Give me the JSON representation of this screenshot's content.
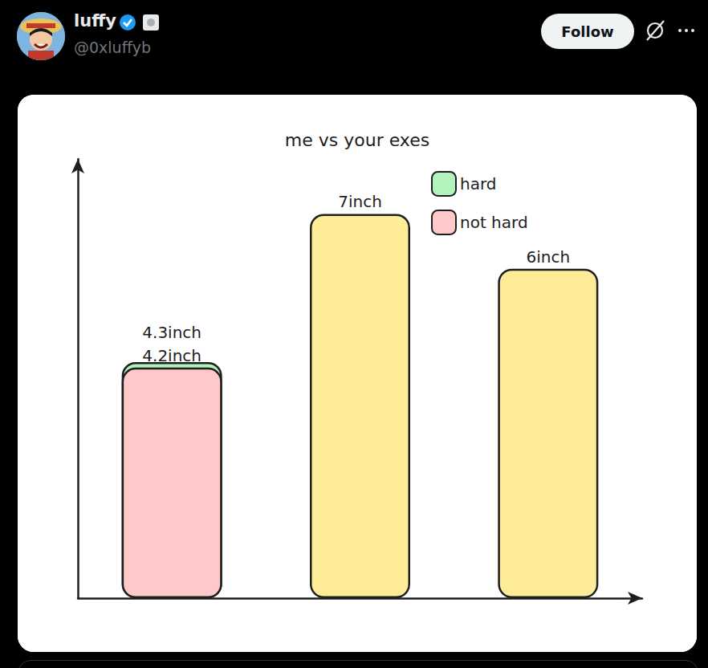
{
  "post": {
    "author": "luffy",
    "handle": "@0xluffyb",
    "button": "Follow"
  },
  "chart_data": {
    "type": "bar",
    "title": "me vs your exes",
    "categories": [
      null,
      null,
      null
    ],
    "series": [
      {
        "name": "hard",
        "color": "#b2f2bb",
        "values": [
          4.3,
          null,
          null
        ],
        "value_labels": [
          "4.3inch",
          null,
          null
        ]
      },
      {
        "name": "not hard",
        "color": "#ffc9c9",
        "values": [
          4.2,
          null,
          null
        ],
        "value_labels": [
          "4.2inch",
          null,
          null
        ]
      },
      {
        "color": "#ffec99",
        "values": [
          null,
          7,
          6
        ],
        "value_labels": [
          null,
          "7inch",
          "6inch"
        ]
      }
    ],
    "ylim": [
      0,
      8
    ],
    "yticks": [],
    "stacked": false,
    "data_labels": true,
    "tick_labels": false,
    "legend": "upper right",
    "grid": false
  }
}
